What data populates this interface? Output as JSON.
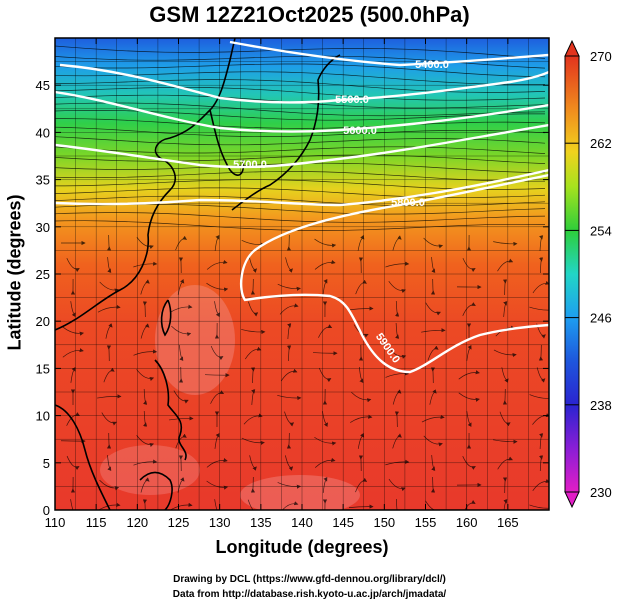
{
  "chart_data": {
    "type": "heatmap",
    "title": "GSM 12Z21Oct2025 (500.0hPa)",
    "xlabel": "Longitude (degrees)",
    "ylabel": "Latitude  (degrees)",
    "xlim": [
      110,
      170
    ],
    "ylim": [
      0,
      50
    ],
    "x_ticks": [
      "110",
      "115",
      "120",
      "125",
      "130",
      "135",
      "140",
      "145",
      "150",
      "155",
      "160",
      "165"
    ],
    "y_ticks": [
      "0",
      "5",
      "10",
      "15",
      "20",
      "25",
      "30",
      "35",
      "40",
      "45"
    ],
    "colorbar": {
      "min": 230,
      "max": 270,
      "ticks": [
        "230",
        "238",
        "246",
        "254",
        "262",
        "270"
      ],
      "colors": [
        "#e21ec6",
        "#5b1ed0",
        "#1e3ad6",
        "#1e9ef0",
        "#22d6c6",
        "#3ad63a",
        "#a6e21e",
        "#f0e21e",
        "#f0a21e",
        "#f06a1e",
        "#e23a1e"
      ]
    },
    "contours": [
      {
        "label": "5400.0"
      },
      {
        "label": "5500.0"
      },
      {
        "label": "5600.0"
      },
      {
        "label": "5700.0"
      },
      {
        "label": "5800.0"
      },
      {
        "label": "5900.0"
      }
    ],
    "credits": [
      "Drawing by DCL (https://www.gfd-dennou.org/library/dcl/)",
      "Data from http://database.rish.kyoto-u.ac.jp/arch/jmadata/"
    ]
  }
}
